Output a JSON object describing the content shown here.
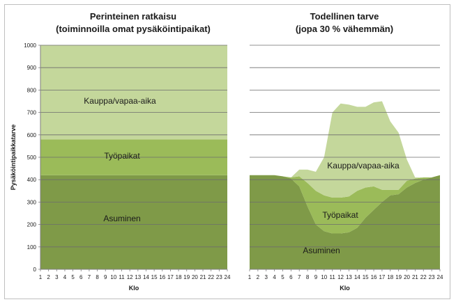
{
  "chart_data": [
    {
      "type": "area",
      "title": "Perinteinen ratkaisu",
      "subtitle": "(toiminnoilla omat pysäköintipaikat)",
      "xlabel": "Klo",
      "ylabel": "Pysäköintipaikkatarve",
      "ylim": [
        0,
        1000
      ],
      "yticks": [
        0,
        100,
        200,
        300,
        400,
        500,
        600,
        700,
        800,
        900,
        1000
      ],
      "x": [
        1,
        2,
        3,
        4,
        5,
        6,
        7,
        8,
        9,
        10,
        11,
        12,
        13,
        14,
        15,
        16,
        17,
        18,
        19,
        20,
        21,
        22,
        23,
        24
      ],
      "stacked": true,
      "grid": true,
      "series": [
        {
          "name": "Asuminen",
          "color": "#7f9a48",
          "values": [
            420,
            420,
            420,
            420,
            420,
            420,
            420,
            420,
            420,
            420,
            420,
            420,
            420,
            420,
            420,
            420,
            420,
            420,
            420,
            420,
            420,
            420,
            420,
            420
          ]
        },
        {
          "name": "Työpaikat",
          "color": "#9bbb59",
          "values": [
            160,
            160,
            160,
            160,
            160,
            160,
            160,
            160,
            160,
            160,
            160,
            160,
            160,
            160,
            160,
            160,
            160,
            160,
            160,
            160,
            160,
            160,
            160,
            160
          ]
        },
        {
          "name": "Kauppa/vapaa-aika",
          "color": "#c4d79b",
          "values": [
            420,
            420,
            420,
            420,
            420,
            420,
            420,
            420,
            420,
            420,
            420,
            420,
            420,
            420,
            420,
            420,
            420,
            420,
            420,
            420,
            420,
            420,
            420,
            420
          ]
        }
      ]
    },
    {
      "type": "area",
      "title": "Todellinen tarve",
      "subtitle": "(jopa 30 % vähemmän)",
      "xlabel": "Klo",
      "ylim": [
        0,
        1000
      ],
      "x": [
        1,
        2,
        3,
        4,
        5,
        6,
        7,
        8,
        9,
        10,
        11,
        12,
        13,
        14,
        15,
        16,
        17,
        18,
        19,
        20,
        21,
        22,
        23,
        24
      ],
      "stacked": true,
      "grid": true,
      "series": [
        {
          "name": "Asuminen",
          "color": "#7f9a48",
          "values": [
            420,
            420,
            420,
            420,
            415,
            405,
            370,
            280,
            200,
            170,
            160,
            160,
            165,
            185,
            230,
            265,
            300,
            330,
            335,
            365,
            385,
            400,
            410,
            420
          ]
        },
        {
          "name": "Työpaikat",
          "color": "#9bbb59",
          "values": [
            0,
            0,
            0,
            0,
            0,
            5,
            45,
            105,
            150,
            160,
            160,
            160,
            160,
            165,
            135,
            105,
            55,
            25,
            20,
            30,
            20,
            10,
            0,
            0
          ]
        },
        {
          "name": "Kauppa/vapaa-aika",
          "color": "#c4d79b",
          "values": [
            0,
            0,
            0,
            0,
            0,
            0,
            30,
            60,
            85,
            170,
            380,
            420,
            410,
            375,
            360,
            375,
            395,
            305,
            255,
            95,
            5,
            0,
            0,
            0
          ]
        }
      ]
    }
  ]
}
